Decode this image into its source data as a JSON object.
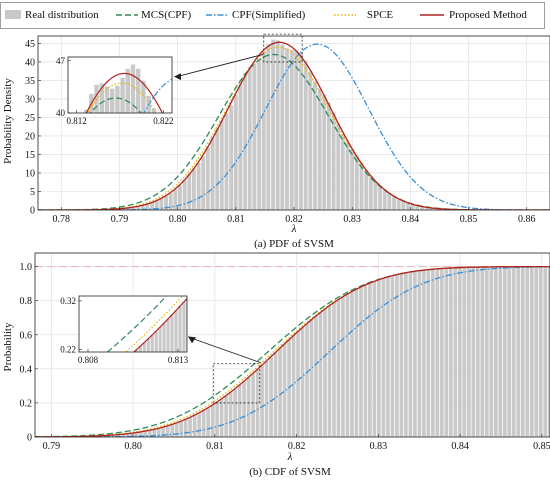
{
  "legend": {
    "items": [
      {
        "label": "Real distribution",
        "color": "#c8c8c8",
        "style": "bar"
      },
      {
        "label": "MCS(CPF)",
        "color": "#2e8b57",
        "style": "dashed"
      },
      {
        "label": "CPF(Simplified)",
        "color": "#3a8fd6",
        "style": "dashdot"
      },
      {
        "label": "SPCE",
        "color": "#e6b400",
        "style": "dotted"
      },
      {
        "label": "Proposed Method",
        "color": "#b22222",
        "style": "solid"
      }
    ]
  },
  "chart_data": [
    {
      "type": "line",
      "subplot_caption": "(a) PDF of SVSM",
      "xlabel": "λ",
      "ylabel": "Probability Density",
      "xlim": [
        0.776,
        0.864
      ],
      "ylim": [
        0,
        47
      ],
      "x_ticks": [
        0.78,
        0.79,
        0.8,
        0.81,
        0.82,
        0.83,
        0.84,
        0.85,
        0.86
      ],
      "y_ticks": [
        0,
        5,
        10,
        15,
        20,
        25,
        30,
        35,
        40,
        45
      ],
      "series": [
        {
          "name": "Real distribution",
          "kind": "histogram",
          "mean": 0.8175,
          "sd": 0.0088,
          "peak": 45.3
        },
        {
          "name": "MCS(CPF)",
          "mean": 0.8165,
          "sd": 0.0094,
          "peak": 42.0
        },
        {
          "name": "CPF(Simplified)",
          "mean": 0.824,
          "sd": 0.0089,
          "peak": 44.8
        },
        {
          "name": "SPCE",
          "mean": 0.8172,
          "sd": 0.009,
          "peak": 44.0
        },
        {
          "name": "Proposed Method",
          "mean": 0.8175,
          "sd": 0.0088,
          "peak": 45.3
        }
      ],
      "inset": {
        "xlim": [
          0.811,
          0.823
        ],
        "ylim": [
          40,
          47.5
        ],
        "x_ticks": [
          0.812,
          0.822
        ],
        "y_ticks": [
          40,
          47
        ]
      }
    },
    {
      "type": "line",
      "subplot_caption": "(b) CDF of SVSM",
      "xlabel": "λ",
      "ylabel": "Probability",
      "xlim": [
        0.788,
        0.851
      ],
      "ylim": [
        0,
        1.08
      ],
      "x_ticks": [
        0.79,
        0.8,
        0.81,
        0.82,
        0.83,
        0.84,
        0.85
      ],
      "y_ticks": [
        0,
        0.2,
        0.4,
        0.6,
        0.8,
        1.0
      ],
      "y_tick_labels": [
        "0",
        "0.2",
        "0.4",
        "0.6",
        "0.8",
        "1.0"
      ],
      "series": [
        {
          "name": "Real distribution",
          "kind": "histogram",
          "mean": 0.8175,
          "sd": 0.0088
        },
        {
          "name": "MCS(CPF)",
          "mean": 0.8165,
          "sd": 0.0094
        },
        {
          "name": "CPF(Simplified)",
          "mean": 0.824,
          "sd": 0.0089
        },
        {
          "name": "SPCE",
          "mean": 0.8172,
          "sd": 0.009
        },
        {
          "name": "Proposed Method",
          "mean": 0.8175,
          "sd": 0.0088
        }
      ],
      "inset": {
        "xlim": [
          0.8075,
          0.8135
        ],
        "ylim": [
          0.215,
          0.33
        ],
        "x_ticks": [
          0.808,
          0.813
        ],
        "y_ticks": [
          0.22,
          0.32
        ]
      }
    }
  ]
}
